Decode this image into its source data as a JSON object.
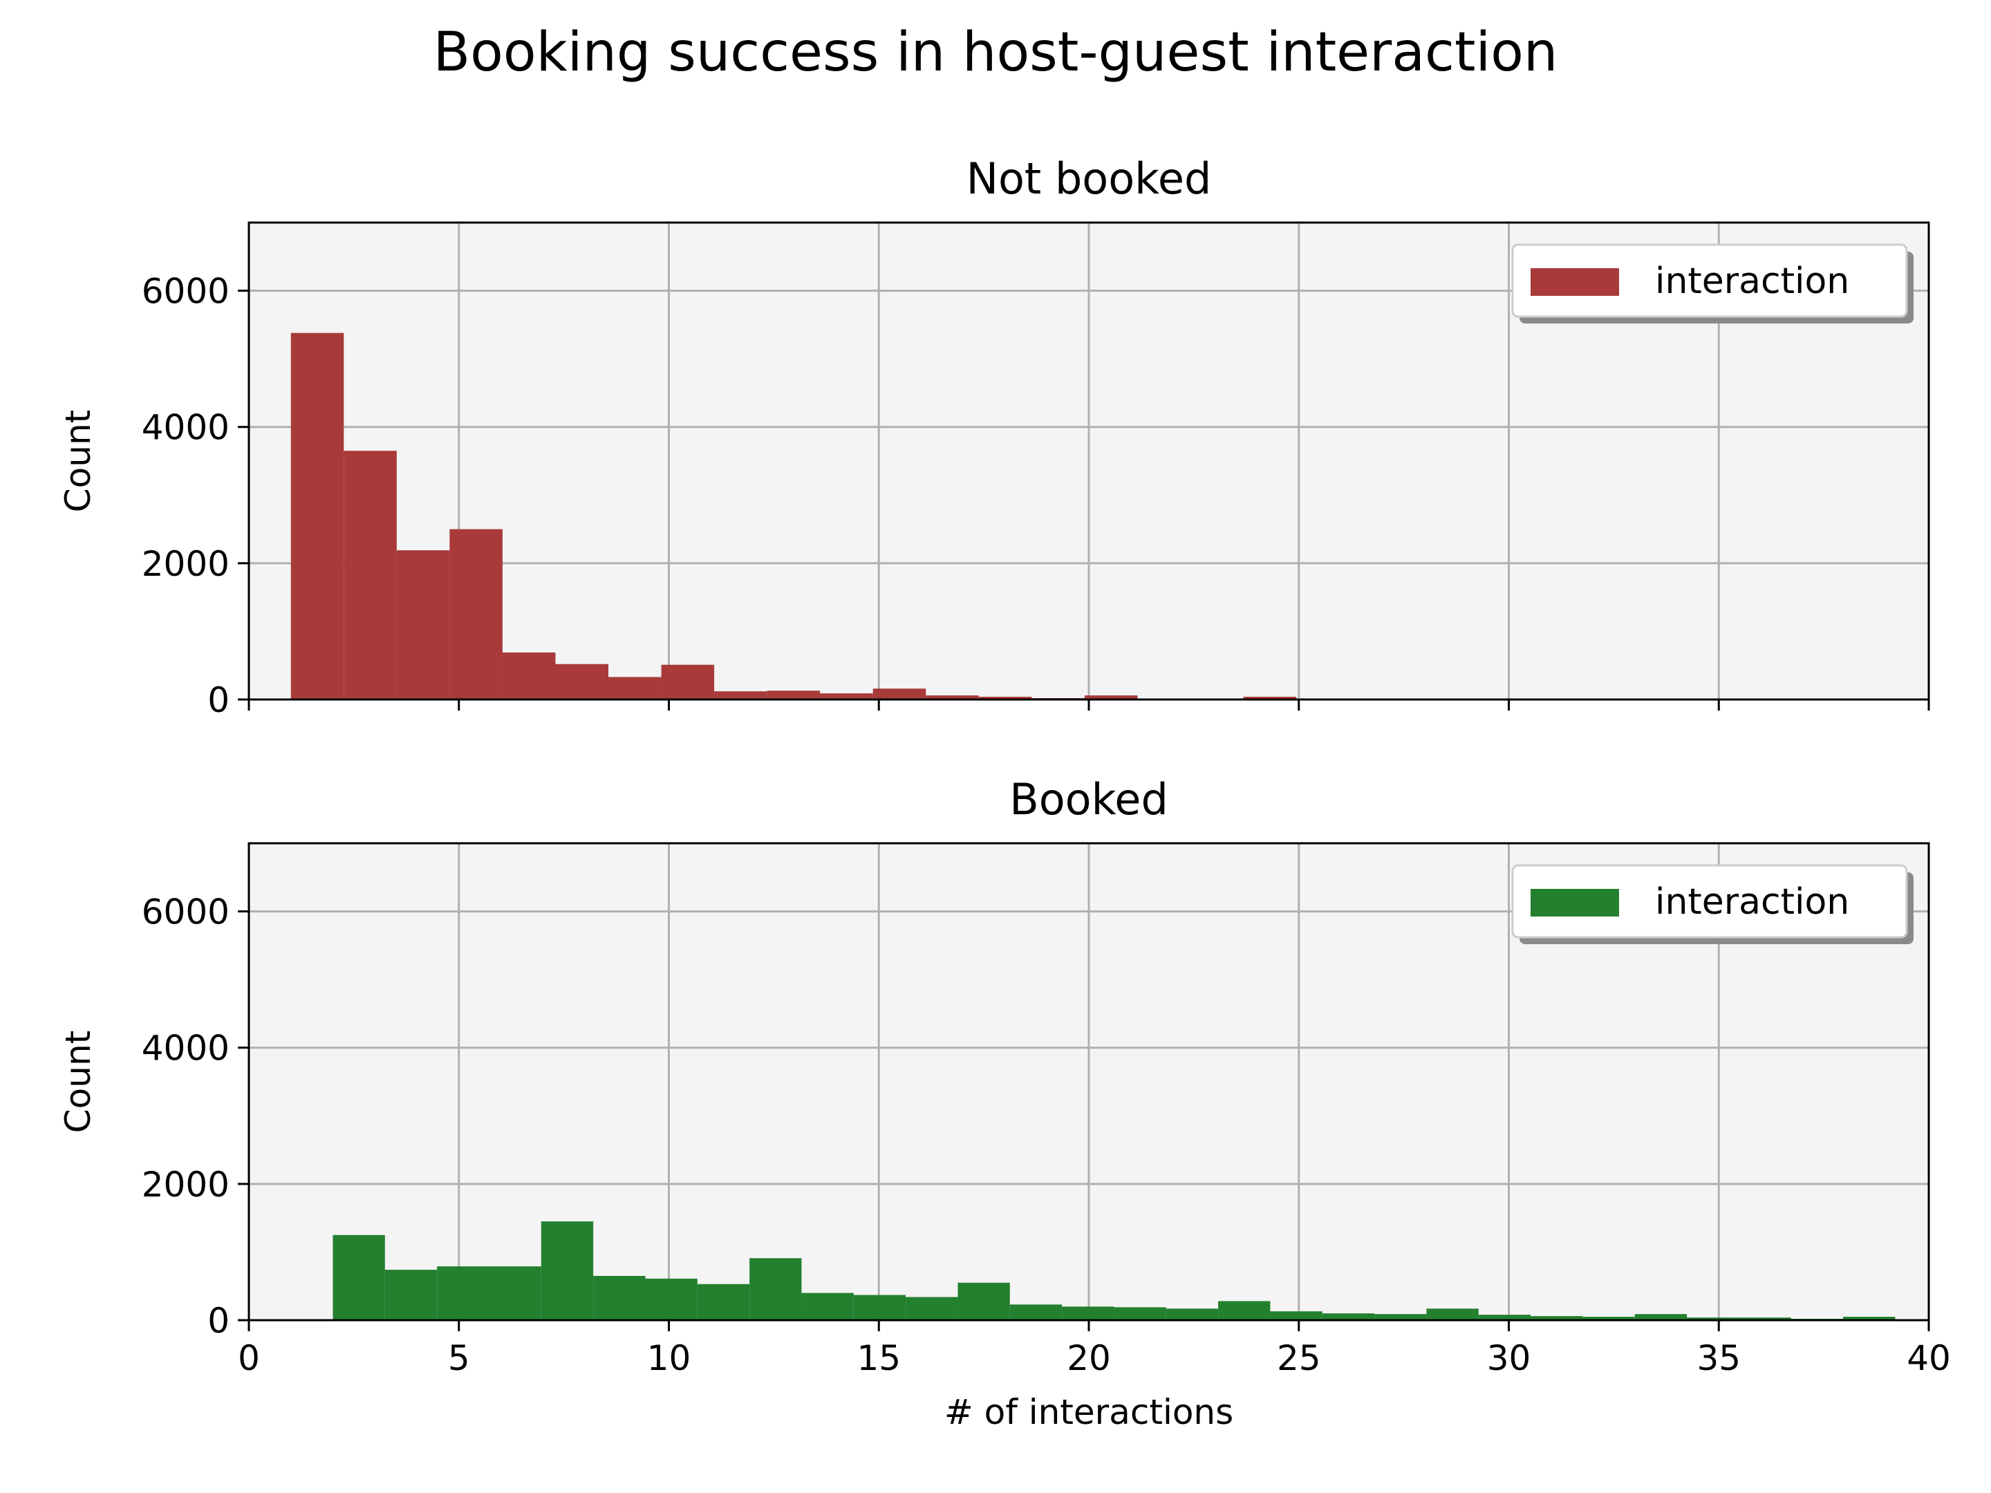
{
  "figure": {
    "title": "Booking success in host-guest interaction"
  },
  "chart_data": [
    {
      "type": "bar",
      "title": "Not booked",
      "xlabel": "",
      "ylabel": "Count",
      "xlim": [
        0,
        40
      ],
      "ylim": [
        0,
        7000
      ],
      "xticks": [
        "0",
        "5",
        "10",
        "15",
        "20",
        "25",
        "30",
        "35",
        "40"
      ],
      "yticks": [
        "0",
        "2000",
        "4000",
        "6000"
      ],
      "grid": true,
      "legend": {
        "position": "top-right",
        "label": "interaction"
      },
      "color": "#a83a3a",
      "bin_edges": [
        1,
        2.26,
        3.52,
        4.78,
        6.04,
        7.3,
        8.56,
        9.82,
        11.08,
        12.34,
        13.6,
        14.86,
        16.12,
        17.38,
        18.64,
        19.9,
        21.16,
        22.42,
        23.68,
        24.94
      ],
      "counts": [
        5380,
        3650,
        2190,
        2500,
        690,
        520,
        330,
        510,
        120,
        130,
        90,
        160,
        60,
        40,
        20,
        60,
        0,
        0,
        40
      ]
    },
    {
      "type": "bar",
      "title": "Booked",
      "xlabel": "# of interactions",
      "ylabel": "Count",
      "xlim": [
        0,
        40
      ],
      "ylim": [
        0,
        7000
      ],
      "xticks": [
        "0",
        "5",
        "10",
        "15",
        "20",
        "25",
        "30",
        "35",
        "40"
      ],
      "yticks": [
        "0",
        "2000",
        "4000",
        "6000"
      ],
      "grid": true,
      "legend": {
        "position": "top-right",
        "label": "interaction"
      },
      "color": "#23802e",
      "bin_edges": [
        2,
        3.24,
        4.48,
        5.72,
        6.96,
        8.2,
        9.44,
        10.68,
        11.92,
        13.16,
        14.4,
        15.64,
        16.88,
        18.12,
        19.36,
        20.6,
        21.84,
        23.08,
        24.32,
        25.56,
        26.8,
        28.04,
        29.28,
        30.52,
        31.76,
        33,
        34.24,
        35.48,
        36.72,
        37.96,
        39.2
      ],
      "counts": [
        1250,
        740,
        790,
        790,
        1450,
        650,
        610,
        530,
        910,
        400,
        370,
        340,
        550,
        230,
        200,
        190,
        170,
        280,
        130,
        100,
        90,
        170,
        80,
        60,
        50,
        90,
        40,
        40,
        20,
        50
      ]
    }
  ]
}
